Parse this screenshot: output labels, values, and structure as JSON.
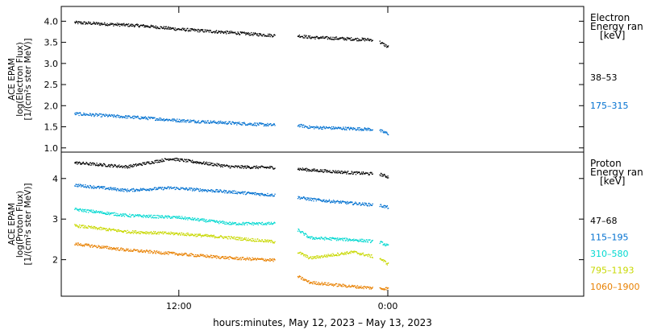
{
  "chart_data": [
    {
      "type": "scatter",
      "ylabel": [
        "ACE EPAM",
        "log(Electron Flux)",
        "[1/(cm²s ster MeV)]"
      ],
      "yticks": [
        "1.0",
        "1.5",
        "2.0",
        "2.5",
        "3.0",
        "3.5",
        "4.0"
      ],
      "ylim": [
        0.9,
        4.35
      ],
      "legend_title": [
        "Electron",
        "Energy ran",
        "[keV]"
      ],
      "series": [
        {
          "name": "38–53",
          "color": "#000000",
          "x": [
            -18,
            -14,
            -12,
            -9,
            -6.5,
            -5.2,
            -4.5,
            -0.9,
            -0.5,
            0
          ],
          "y": [
            3.98,
            3.9,
            3.82,
            3.74,
            3.67,
            3.67,
            3.63,
            3.57,
            3.52,
            3.4
          ]
        },
        {
          "name": "175–315",
          "color": "#0070d0",
          "x": [
            -18,
            -14,
            -12,
            -9,
            -6.5,
            -5.2,
            -4.5,
            -0.9,
            -0.5,
            0
          ],
          "y": [
            1.82,
            1.72,
            1.66,
            1.6,
            1.55,
            1.55,
            1.5,
            1.45,
            1.42,
            1.35
          ]
        }
      ]
    },
    {
      "type": "scatter",
      "ylabel": [
        "ACE EPAM",
        "log(Proton Flux)",
        "[1/(cm²s ster MeV)]"
      ],
      "yticks": [
        "2",
        "3",
        "4"
      ],
      "ylim": [
        1.1,
        4.65
      ],
      "legend_title": [
        "Proton",
        "Energy ran",
        "[keV]"
      ],
      "series": [
        {
          "name": "47–68",
          "color": "#000000",
          "x": [
            -18,
            -15,
            -12.5,
            -9,
            -6.5,
            -5.2,
            -4.5,
            -2,
            -0.5,
            0
          ],
          "y": [
            4.4,
            4.3,
            4.5,
            4.3,
            4.28,
            4.25,
            4.22,
            4.15,
            4.12,
            4.05
          ]
        },
        {
          "name": "115–195",
          "color": "#0070d0",
          "x": [
            -18,
            -15,
            -12.5,
            -9,
            -6.5,
            -5.2,
            -4.5,
            -2,
            -0.5,
            0
          ],
          "y": [
            3.85,
            3.72,
            3.78,
            3.68,
            3.6,
            3.55,
            3.5,
            3.4,
            3.35,
            3.3
          ]
        },
        {
          "name": "310–580",
          "color": "#00d8d0",
          "x": [
            -18,
            -15,
            -12,
            -9,
            -6.5,
            -5.2,
            -4.5,
            -2,
            -0.5,
            0
          ],
          "y": [
            3.25,
            3.1,
            3.05,
            2.9,
            2.9,
            2.75,
            2.55,
            2.5,
            2.45,
            2.35
          ]
        },
        {
          "name": "795–1193",
          "color": "#c8d800",
          "x": [
            -18,
            -15,
            -12,
            -9,
            -6.5,
            -5.2,
            -4.5,
            -2,
            -0.5,
            0
          ],
          "y": [
            2.85,
            2.7,
            2.65,
            2.55,
            2.45,
            2.2,
            2.05,
            2.2,
            2.05,
            1.9
          ]
        },
        {
          "name": "1060–1900",
          "color": "#e88000",
          "x": [
            -18,
            -15,
            -12,
            -9,
            -6.5,
            -5.2,
            -4.5,
            -2,
            -0.5,
            0
          ],
          "y": [
            2.4,
            2.25,
            2.15,
            2.05,
            2.0,
            1.6,
            1.45,
            1.35,
            1.3,
            1.3
          ]
        }
      ]
    }
  ],
  "xlim": [
    -18.75,
    11.25
  ],
  "xticks": [
    {
      "label": "12:00",
      "hours": -12
    },
    {
      "label": "0:00",
      "hours": 0
    }
  ],
  "data_gaps_hours": [
    [
      -6.5,
      -5.2
    ],
    [
      -0.9,
      -0.5
    ]
  ],
  "xlabel": "hours:minutes, May 12, 2023 – May 13, 2023"
}
